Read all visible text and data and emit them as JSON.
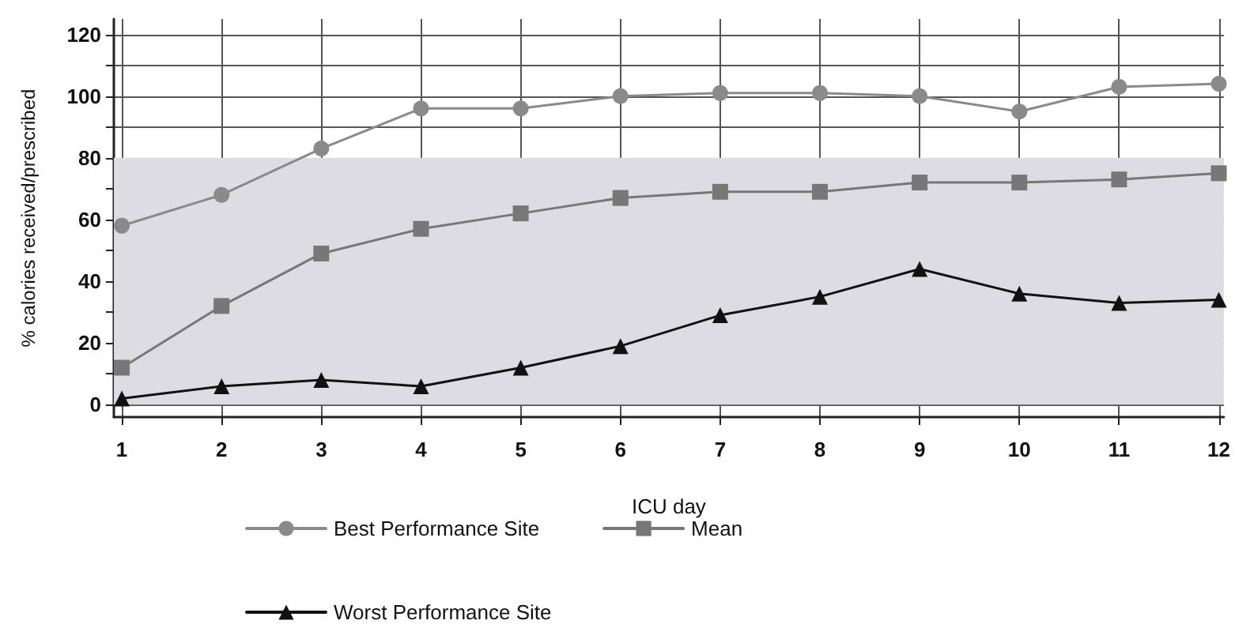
{
  "chart_data": {
    "type": "line",
    "xlabel": "ICU day",
    "ylabel": "% calories received/prescribed",
    "x": [
      1,
      2,
      3,
      4,
      5,
      6,
      7,
      8,
      9,
      10,
      11,
      12
    ],
    "xlim": [
      0.92,
      12.05
    ],
    "xticks": [
      1,
      2,
      3,
      4,
      5,
      6,
      7,
      8,
      9,
      10,
      11,
      12
    ],
    "ylim": [
      -4,
      125
    ],
    "yticks": [
      0,
      {
        "value": 10,
        "label": null
      },
      20,
      {
        "value": 30,
        "label": null
      },
      40,
      {
        "value": 50,
        "label": null
      },
      60,
      {
        "value": 70,
        "label": null
      },
      80,
      {
        "value": 90,
        "label": null
      },
      100,
      {
        "value": 110,
        "label": null
      },
      120
    ],
    "grid": true,
    "legend": "bottom",
    "line_style": "solid",
    "bands": [
      {
        "axis": "y",
        "from": 0,
        "to": 80,
        "color": "#dcdce2"
      }
    ],
    "series": [
      {
        "name": "Best Performance Site",
        "color": "#8a8a8a",
        "marker": "circle",
        "values": [
          58,
          68,
          83,
          96,
          96,
          100,
          101,
          101,
          100,
          95,
          103,
          104
        ]
      },
      {
        "name": "Mean",
        "color": "#777777",
        "marker": "square",
        "values": [
          12,
          32,
          49,
          57,
          62,
          67,
          69,
          69,
          72,
          72,
          73,
          75
        ]
      },
      {
        "name": "Worst Performance Site",
        "color": "#111111",
        "marker": "triangle",
        "values": [
          2,
          6,
          8,
          6,
          12,
          19,
          29,
          35,
          44,
          36,
          33,
          34
        ]
      }
    ]
  }
}
